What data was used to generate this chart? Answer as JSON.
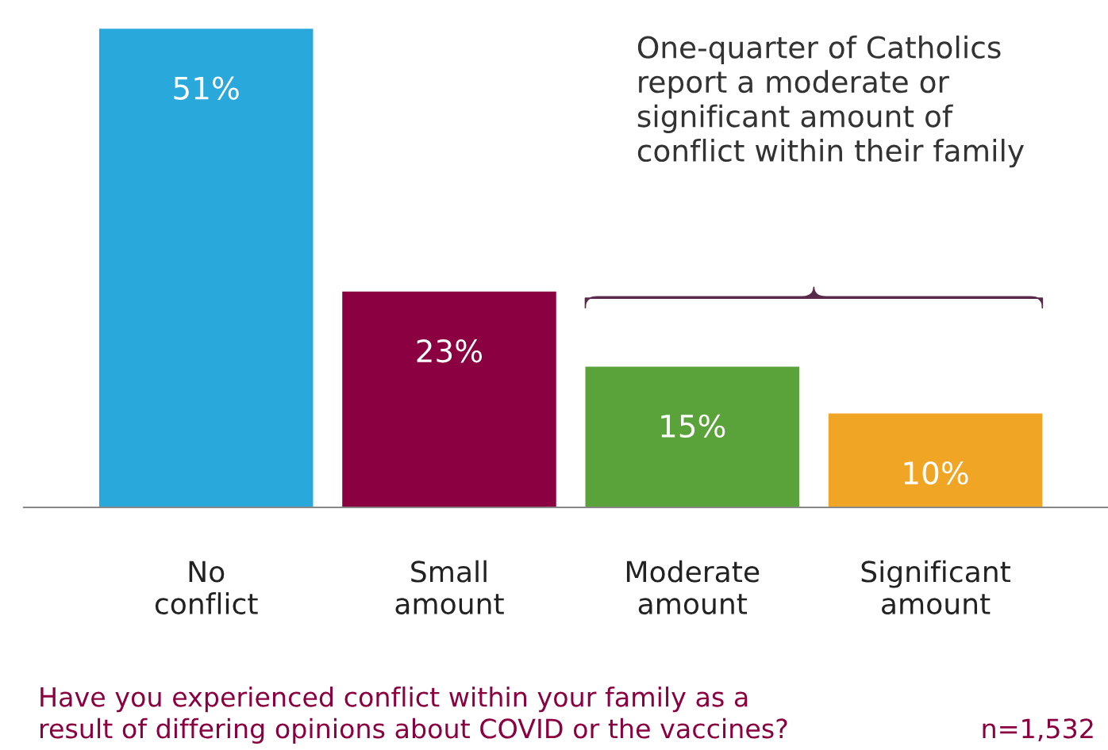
{
  "chart_data": {
    "type": "bar",
    "categories": [
      "No\nconflict",
      "Small\namount",
      "Moderate\namount",
      "Significant\namount"
    ],
    "values": [
      51,
      23,
      15,
      10
    ],
    "colors": [
      "#29a8dc",
      "#8b0040",
      "#5aa23a",
      "#f0a524"
    ],
    "value_labels": [
      "51%",
      "23%",
      "15%",
      "10%"
    ],
    "annotations": [
      "One-quarter of Catholics\nreport a moderate or\nsignificant amount of\nconflict within their family",
      "Have you experienced conflict within your family as a\nresult of differing opinions about COVID or the vaccines?",
      "n=1,532"
    ],
    "grid": false,
    "legend": false
  }
}
